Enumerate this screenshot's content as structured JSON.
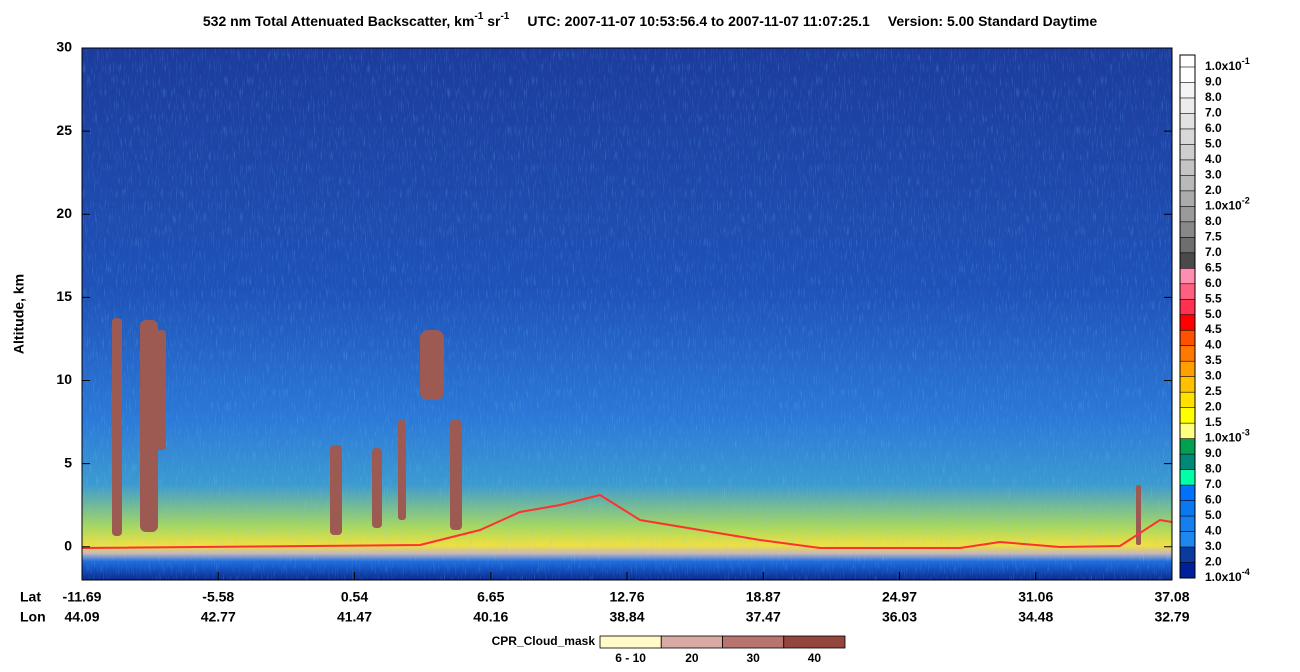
{
  "chart_data": {
    "type": "curtain",
    "title": {
      "main": "532 nm Total Attenuated Backscatter, km",
      "sup1": "-1",
      "mid": " sr",
      "sup2": "-1",
      "utc": "UTC:  2007-11-07 10:53:56.4  to  2007-11-07 11:07:25.1",
      "version": "Version: 5.00  Standard  Daytime"
    },
    "y_label": "Altitude, km",
    "ylim": [
      -2,
      30
    ],
    "yticks": [
      0,
      5,
      10,
      15,
      20,
      25,
      30
    ],
    "x_row_labels": [
      "Lat",
      "Lon"
    ],
    "lat": [
      -11.69,
      -5.58,
      0.54,
      6.65,
      12.76,
      18.87,
      24.97,
      31.06,
      37.08
    ],
    "lon": [
      44.09,
      42.77,
      41.47,
      40.16,
      38.84,
      37.47,
      36.03,
      34.48,
      32.79
    ],
    "colorbar_labels": [
      {
        "text": "1.0x10",
        "sup": "-1"
      },
      {
        "text": "9.0"
      },
      {
        "text": "8.0"
      },
      {
        "text": "7.0"
      },
      {
        "text": "6.0"
      },
      {
        "text": "5.0"
      },
      {
        "text": "4.0"
      },
      {
        "text": "3.0"
      },
      {
        "text": "2.0"
      },
      {
        "text": "1.0x10",
        "sup": "-2"
      },
      {
        "text": "8.0"
      },
      {
        "text": "7.5"
      },
      {
        "text": "7.0"
      },
      {
        "text": "6.5"
      },
      {
        "text": "6.0"
      },
      {
        "text": "5.5"
      },
      {
        "text": "5.0"
      },
      {
        "text": "4.5"
      },
      {
        "text": "4.0"
      },
      {
        "text": "3.5"
      },
      {
        "text": "3.0"
      },
      {
        "text": "2.5"
      },
      {
        "text": "2.0"
      },
      {
        "text": "1.5"
      },
      {
        "text": "1.0x10",
        "sup": "-3"
      },
      {
        "text": "9.0"
      },
      {
        "text": "8.0"
      },
      {
        "text": "7.0"
      },
      {
        "text": "6.0"
      },
      {
        "text": "5.0"
      },
      {
        "text": "4.0"
      },
      {
        "text": "3.0"
      },
      {
        "text": "2.0"
      },
      {
        "text": "1.0x10",
        "sup": "-4"
      }
    ],
    "colorbar_colors": [
      "#ffffff",
      "#f5f5f5",
      "#ececec",
      "#e2e2e2",
      "#d8d8d8",
      "#cecece",
      "#c4c4c4",
      "#b9b9b9",
      "#ababab",
      "#9a9a9a",
      "#888888",
      "#6e6e6e",
      "#4a4a4a",
      "#ff8fb0",
      "#ff6080",
      "#ff3050",
      "#ff0000",
      "#ff5000",
      "#ff7800",
      "#ffa000",
      "#ffc000",
      "#ffe000",
      "#ffff00",
      "#ffff80",
      "#00a050",
      "#008878",
      "#00ffa8",
      "#0070ff",
      "#0a78f0",
      "#1480f0",
      "#1e88f0",
      "#0a3ca0",
      "#00209a"
    ],
    "cpr_legend": {
      "title": "CPR_Cloud_mask",
      "labels": [
        "6 - 10",
        "20",
        "30",
        "40"
      ],
      "colors": [
        "#fffac8",
        "#d9a9a4",
        "#b8746f",
        "#94453d"
      ]
    }
  }
}
